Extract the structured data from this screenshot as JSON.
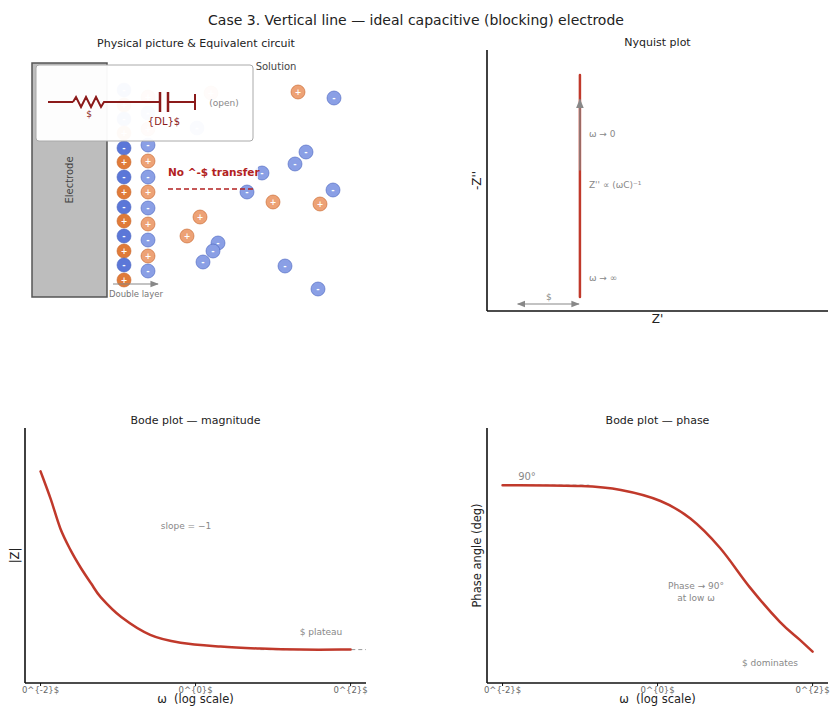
{
  "title": "Case 3. Vertical line — ideal capacitive (blocking) electrode",
  "diagram": {
    "title": "Physical picture & Equivalent circuit",
    "solution_label": "Solution",
    "electrode_label": "Electrode",
    "double_layer_label": "Double layer",
    "transfer_label": "No ^-$ transfer",
    "circuit": {
      "resistor_label": "$",
      "capacitor_label": "{DL}$",
      "open_label": "(open)"
    },
    "ion_signs": {
      "cation": "+",
      "anion": "-"
    }
  },
  "chart_data": [
    {
      "type": "line",
      "title": "Nyquist plot",
      "x_label": "Z'",
      "y_label": "-Z''",
      "x": [
        1,
        1
      ],
      "values": [
        0.54,
        9.04
      ],
      "color": "#c0392b",
      "xlim": [
        0,
        3.67
      ],
      "ylim": [
        0,
        10
      ],
      "tick_labels": false,
      "rs_label": "$",
      "annotations": [
        "ω → 0",
        "Z'' ∝ (ωC)⁻¹",
        "ω → ∞"
      ]
    },
    {
      "type": "line",
      "title": "Bode plot — magnitude",
      "x_label": "ω  (log scale)",
      "y_label": "|Z|",
      "log": "x",
      "x": [
        0.01,
        0.0135,
        0.018,
        0.0244,
        0.033,
        0.045,
        0.06,
        0.11,
        0.26,
        0.64,
        2.1,
        6.9,
        22.6,
        100
      ],
      "values": [
        8.3,
        7.22,
        6.06,
        5.21,
        4.52,
        3.9,
        3.36,
        2.59,
        1.89,
        1.58,
        1.43,
        1.35,
        1.31,
        1.31
      ],
      "color": "#c0392b",
      "xlim": [
        0.0063,
        158
      ],
      "ylim": [
        0,
        10
      ],
      "xticks": [
        {
          "value": 0.01,
          "label": "0^{-2}$"
        },
        {
          "value": 1,
          "label": "0^{0}$"
        },
        {
          "value": 100,
          "label": "0^{2}$"
        }
      ],
      "tick_labels": "x",
      "asymptote": 1.31,
      "annotations": [
        "slope = −1",
        "$ plateau"
      ]
    },
    {
      "type": "line",
      "title": "Bode plot — phase",
      "x_label": "ω  (log scale)",
      "y_label": "Phase angle (deg)",
      "log": "x",
      "x": [
        0.01,
        0.103,
        0.336,
        1.09,
        2.65,
        6.4,
        15.6,
        37.8,
        68,
        100
      ],
      "values": [
        90,
        89.6,
        87.8,
        82.8,
        74.8,
        61.4,
        43.4,
        27.8,
        19.7,
        14.3
      ],
      "color": "#c0392b",
      "xlim": [
        0.0063,
        158
      ],
      "ylim": [
        0,
        116
      ],
      "xticks": [
        {
          "value": 0.01,
          "label": "0^{-2}$"
        },
        {
          "value": 1,
          "label": "0^{0}$"
        },
        {
          "value": 100,
          "label": "0^{2}$"
        }
      ],
      "tick_labels": "x",
      "asymptote": 90,
      "annotations": [
        "90°",
        [
          "Phase → 90°",
          "at low ω"
        ],
        "$ dominates"
      ]
    }
  ]
}
